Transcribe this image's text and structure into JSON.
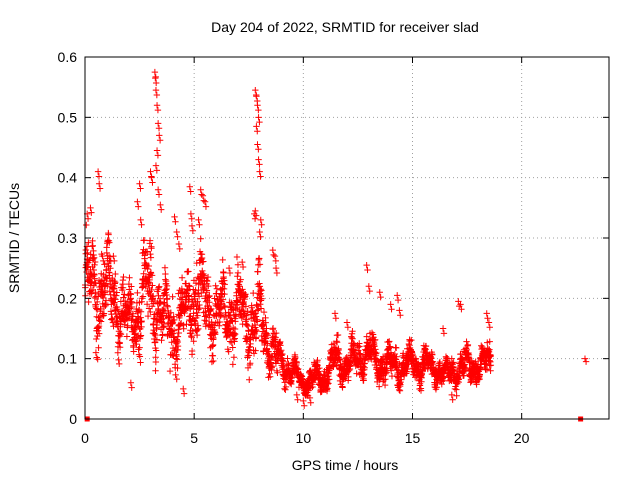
{
  "chart_data": {
    "type": "scatter",
    "title": "Day 204 of 2022, SRMTID for receiver slad",
    "xlabel": "GPS time / hours",
    "ylabel": "SRMTID / TECUs",
    "xlim": [
      0,
      24
    ],
    "ylim": [
      0,
      0.6
    ],
    "xticks": [
      0,
      5,
      10,
      15,
      20
    ],
    "yticks": [
      0,
      0.1,
      0.2,
      0.3,
      0.4,
      0.5,
      0.6
    ],
    "xtick_labels": [
      "0",
      "5",
      "10",
      "15",
      "20"
    ],
    "ytick_labels": [
      "0",
      "0.1",
      "0.2",
      "0.3",
      "0.4",
      "0.5",
      "0.6"
    ],
    "grid": true,
    "marker": "plus",
    "series_color": "#ff0000",
    "envelope": {
      "description": "approximate local median / spread of the dense point cloud (hours -> TECU)",
      "x": [
        0.0,
        0.5,
        1.0,
        1.5,
        2.0,
        2.5,
        3.0,
        3.5,
        4.0,
        4.5,
        5.0,
        5.5,
        6.0,
        6.5,
        7.0,
        7.5,
        8.0,
        8.5,
        9.0,
        9.5,
        10.0,
        10.5,
        11.0,
        11.5,
        12.0,
        12.5,
        13.0,
        13.5,
        14.0,
        14.5,
        15.0,
        15.5,
        16.0,
        16.5,
        17.0,
        17.5,
        18.0,
        18.6
      ],
      "center": [
        0.23,
        0.21,
        0.22,
        0.19,
        0.16,
        0.19,
        0.22,
        0.17,
        0.15,
        0.16,
        0.22,
        0.2,
        0.17,
        0.17,
        0.18,
        0.16,
        0.17,
        0.12,
        0.09,
        0.08,
        0.06,
        0.065,
        0.07,
        0.1,
        0.09,
        0.1,
        0.11,
        0.09,
        0.09,
        0.085,
        0.095,
        0.09,
        0.085,
        0.075,
        0.08,
        0.09,
        0.085,
        0.1
      ],
      "spread": [
        0.06,
        0.06,
        0.06,
        0.05,
        0.05,
        0.07,
        0.08,
        0.05,
        0.05,
        0.05,
        0.07,
        0.06,
        0.05,
        0.05,
        0.05,
        0.05,
        0.06,
        0.04,
        0.025,
        0.02,
        0.015,
        0.02,
        0.02,
        0.03,
        0.025,
        0.03,
        0.03,
        0.025,
        0.025,
        0.025,
        0.025,
        0.025,
        0.02,
        0.02,
        0.025,
        0.025,
        0.02,
        0.03
      ]
    },
    "spikes": [
      {
        "x": 0.1,
        "y": 0.34
      },
      {
        "x": 0.25,
        "y": 0.35
      },
      {
        "x": 0.6,
        "y": 0.41
      },
      {
        "x": 0.65,
        "y": 0.39
      },
      {
        "x": 1.3,
        "y": 0.27
      },
      {
        "x": 2.4,
        "y": 0.36
      },
      {
        "x": 2.5,
        "y": 0.39
      },
      {
        "x": 2.55,
        "y": 0.33
      },
      {
        "x": 3.0,
        "y": 0.41
      },
      {
        "x": 3.05,
        "y": 0.4
      },
      {
        "x": 3.2,
        "y": 0.575
      },
      {
        "x": 3.22,
        "y": 0.565
      },
      {
        "x": 3.25,
        "y": 0.545
      },
      {
        "x": 3.3,
        "y": 0.52
      },
      {
        "x": 3.35,
        "y": 0.49
      },
      {
        "x": 3.4,
        "y": 0.47
      },
      {
        "x": 3.3,
        "y": 0.445
      },
      {
        "x": 3.25,
        "y": 0.42
      },
      {
        "x": 3.35,
        "y": 0.38
      },
      {
        "x": 3.45,
        "y": 0.355
      },
      {
        "x": 4.1,
        "y": 0.335
      },
      {
        "x": 4.2,
        "y": 0.31
      },
      {
        "x": 4.3,
        "y": 0.29
      },
      {
        "x": 4.8,
        "y": 0.385
      },
      {
        "x": 4.85,
        "y": 0.34
      },
      {
        "x": 4.9,
        "y": 0.32
      },
      {
        "x": 5.3,
        "y": 0.38
      },
      {
        "x": 5.4,
        "y": 0.37
      },
      {
        "x": 5.5,
        "y": 0.36
      },
      {
        "x": 5.2,
        "y": 0.33
      },
      {
        "x": 6.6,
        "y": 0.25
      },
      {
        "x": 7.2,
        "y": 0.26
      },
      {
        "x": 7.8,
        "y": 0.545
      },
      {
        "x": 7.85,
        "y": 0.535
      },
      {
        "x": 7.9,
        "y": 0.52
      },
      {
        "x": 7.95,
        "y": 0.5
      },
      {
        "x": 7.85,
        "y": 0.485
      },
      {
        "x": 7.9,
        "y": 0.455
      },
      {
        "x": 7.95,
        "y": 0.43
      },
      {
        "x": 8.0,
        "y": 0.41
      },
      {
        "x": 7.8,
        "y": 0.345
      },
      {
        "x": 7.75,
        "y": 0.34
      },
      {
        "x": 8.0,
        "y": 0.31
      },
      {
        "x": 8.05,
        "y": 0.33
      },
      {
        "x": 8.6,
        "y": 0.28
      },
      {
        "x": 8.7,
        "y": 0.27
      },
      {
        "x": 8.75,
        "y": 0.25
      },
      {
        "x": 12.9,
        "y": 0.255
      },
      {
        "x": 13.0,
        "y": 0.22
      },
      {
        "x": 13.5,
        "y": 0.21
      },
      {
        "x": 14.0,
        "y": 0.19
      },
      {
        "x": 14.3,
        "y": 0.205
      },
      {
        "x": 14.4,
        "y": 0.18
      },
      {
        "x": 11.45,
        "y": 0.175
      },
      {
        "x": 12.0,
        "y": 0.16
      },
      {
        "x": 17.1,
        "y": 0.195
      },
      {
        "x": 17.2,
        "y": 0.19
      },
      {
        "x": 18.4,
        "y": 0.175
      },
      {
        "x": 18.5,
        "y": 0.16
      },
      {
        "x": 16.4,
        "y": 0.15
      },
      {
        "x": 0.5,
        "y": 0.11
      },
      {
        "x": 0.8,
        "y": 0.27
      },
      {
        "x": 9.7,
        "y": 0.04
      },
      {
        "x": 10.0,
        "y": 0.03
      },
      {
        "x": 10.3,
        "y": 0.035
      },
      {
        "x": 16.8,
        "y": 0.04
      },
      {
        "x": 4.5,
        "y": 0.05
      },
      {
        "x": 2.1,
        "y": 0.06
      }
    ],
    "isolated_points": [
      {
        "x": 22.9,
        "y": 0.1
      },
      {
        "x": 22.95,
        "y": 0.095
      },
      {
        "x": 0.1,
        "y": 0.0
      },
      {
        "x": 22.7,
        "y": 0.0
      }
    ]
  }
}
